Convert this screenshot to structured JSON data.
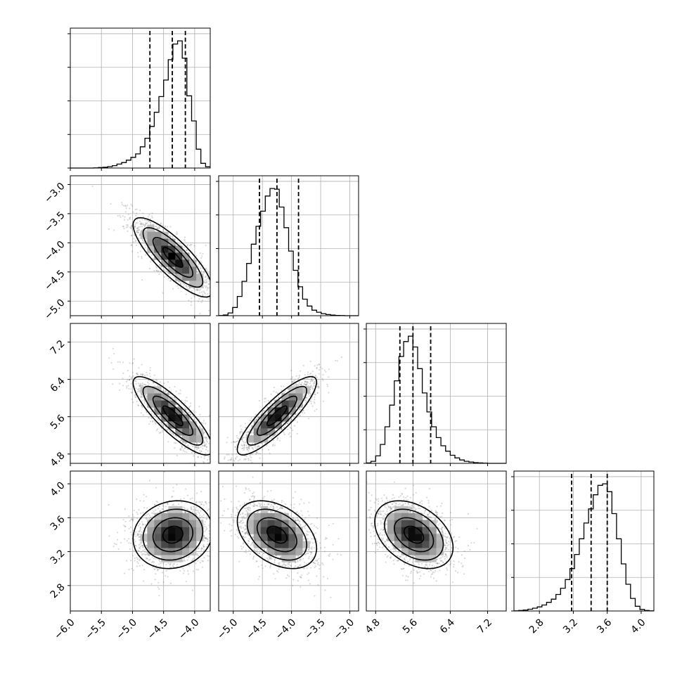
{
  "chart_data": {
    "type": "corner",
    "grid": true,
    "parameters": [
      {
        "range": [
          -6.0,
          -3.75
        ],
        "ticks": [
          -6.0,
          -5.5,
          -5.0,
          -4.5,
          -4.0
        ],
        "tick_labels": [
          "−6.0",
          "−5.5",
          "−5.0",
          "−4.5",
          "−4.0"
        ],
        "quantiles": [
          -4.72,
          -4.36,
          -4.15
        ],
        "hist_x": [
          -6.0,
          -5.925,
          -5.85,
          -5.775,
          -5.7,
          -5.625,
          -5.55,
          -5.475,
          -5.4,
          -5.325,
          -5.25,
          -5.175,
          -5.1,
          -5.025,
          -4.95,
          -4.875,
          -4.8,
          -4.725,
          -4.65,
          -4.575,
          -4.5,
          -4.425,
          -4.35,
          -4.275,
          -4.2,
          -4.125,
          -4.05,
          -3.975,
          -3.9,
          -3.825
        ],
        "hist": [
          0,
          0,
          0,
          0,
          0,
          1,
          3,
          5,
          9,
          15,
          25,
          35,
          50,
          68,
          90,
          135,
          190,
          265,
          355,
          455,
          560,
          690,
          790,
          810,
          700,
          460,
          300,
          120,
          30,
          8
        ]
      },
      {
        "range": [
          -5.25,
          -2.85
        ],
        "ticks": [
          -5.0,
          -4.5,
          -4.0,
          -3.5,
          -3.0
        ],
        "tick_labels": [
          "−5.0",
          "−4.5",
          "−4.0",
          "−3.5",
          "−3.0"
        ],
        "quantiles": [
          -4.55,
          -4.25,
          -3.88
        ],
        "hist_x": [
          -5.25,
          -5.17,
          -5.09,
          -5.01,
          -4.93,
          -4.85,
          -4.77,
          -4.69,
          -4.61,
          -4.53,
          -4.45,
          -4.37,
          -4.29,
          -4.21,
          -4.13,
          -4.05,
          -3.97,
          -3.89,
          -3.81,
          -3.73,
          -3.65,
          -3.57,
          -3.49,
          -3.41,
          -3.33,
          -3.25,
          -3.17,
          -3.09,
          -3.01,
          -2.93
        ],
        "hist": [
          1,
          5,
          20,
          60,
          140,
          250,
          380,
          520,
          650,
          760,
          870,
          925,
          920,
          790,
          640,
          470,
          330,
          210,
          120,
          70,
          40,
          25,
          15,
          8,
          4,
          2,
          1,
          0,
          0,
          0
        ]
      },
      {
        "range": [
          4.6,
          7.6
        ],
        "ticks": [
          4.8,
          5.6,
          6.4,
          7.2
        ],
        "tick_labels": [
          "4.8",
          "5.6",
          "6.4",
          "7.2"
        ],
        "quantiles": [
          5.32,
          5.6,
          5.98
        ],
        "hist_x": [
          4.6,
          4.7,
          4.8,
          4.9,
          5.0,
          5.1,
          5.2,
          5.3,
          5.4,
          5.5,
          5.6,
          5.7,
          5.8,
          5.9,
          6.0,
          6.1,
          6.2,
          6.3,
          6.4,
          6.5,
          6.6,
          6.7,
          6.8,
          6.9,
          7.0,
          7.1,
          7.2,
          7.3,
          7.4,
          7.5
        ],
        "hist": [
          3,
          15,
          55,
          140,
          270,
          430,
          610,
          790,
          900,
          940,
          860,
          700,
          520,
          380,
          270,
          190,
          130,
          90,
          60,
          40,
          25,
          15,
          10,
          5,
          3,
          1,
          0,
          0,
          0,
          0
        ]
      },
      {
        "range": [
          2.5,
          4.15
        ],
        "ticks": [
          2.8,
          3.2,
          3.6,
          4.0
        ],
        "tick_labels": [
          "2.8",
          "3.2",
          "3.6",
          "4.0"
        ],
        "quantiles": [
          3.18,
          3.41,
          3.6
        ],
        "hist_x": [
          2.5,
          2.555,
          2.61,
          2.665,
          2.72,
          2.775,
          2.83,
          2.885,
          2.94,
          2.995,
          3.05,
          3.105,
          3.16,
          3.215,
          3.27,
          3.325,
          3.38,
          3.435,
          3.49,
          3.545,
          3.6,
          3.655,
          3.71,
          3.765,
          3.82,
          3.875,
          3.93,
          3.985,
          4.04,
          4.095
        ],
        "hist": [
          1,
          3,
          6,
          11,
          18,
          26,
          38,
          55,
          75,
          105,
          145,
          200,
          270,
          360,
          460,
          560,
          650,
          740,
          800,
          810,
          760,
          620,
          460,
          300,
          170,
          80,
          30,
          10,
          3,
          1
        ]
      }
    ],
    "pairs": [
      {
        "x": 0,
        "y": 1,
        "mean": [
          -4.35,
          -4.25
        ],
        "sigma": [
          0.32,
          0.34
        ],
        "rho": -0.82
      },
      {
        "x": 0,
        "y": 2,
        "mean": [
          -4.35,
          5.62
        ],
        "sigma": [
          0.32,
          0.42
        ],
        "rho": -0.84
      },
      {
        "x": 1,
        "y": 2,
        "mean": [
          -4.25,
          5.62
        ],
        "sigma": [
          0.34,
          0.42
        ],
        "rho": 0.86
      },
      {
        "x": 0,
        "y": 3,
        "mean": [
          -4.35,
          3.4
        ],
        "sigma": [
          0.32,
          0.2
        ],
        "rho": 0.12
      },
      {
        "x": 1,
        "y": 3,
        "mean": [
          -4.25,
          3.4
        ],
        "sigma": [
          0.34,
          0.2
        ],
        "rho": -0.4
      },
      {
        "x": 2,
        "y": 3,
        "mean": [
          5.62,
          3.4
        ],
        "sigma": [
          0.42,
          0.2
        ],
        "rho": -0.38
      }
    ],
    "contour_levels": [
      0.5,
      1.0,
      1.5,
      2.0
    ]
  }
}
